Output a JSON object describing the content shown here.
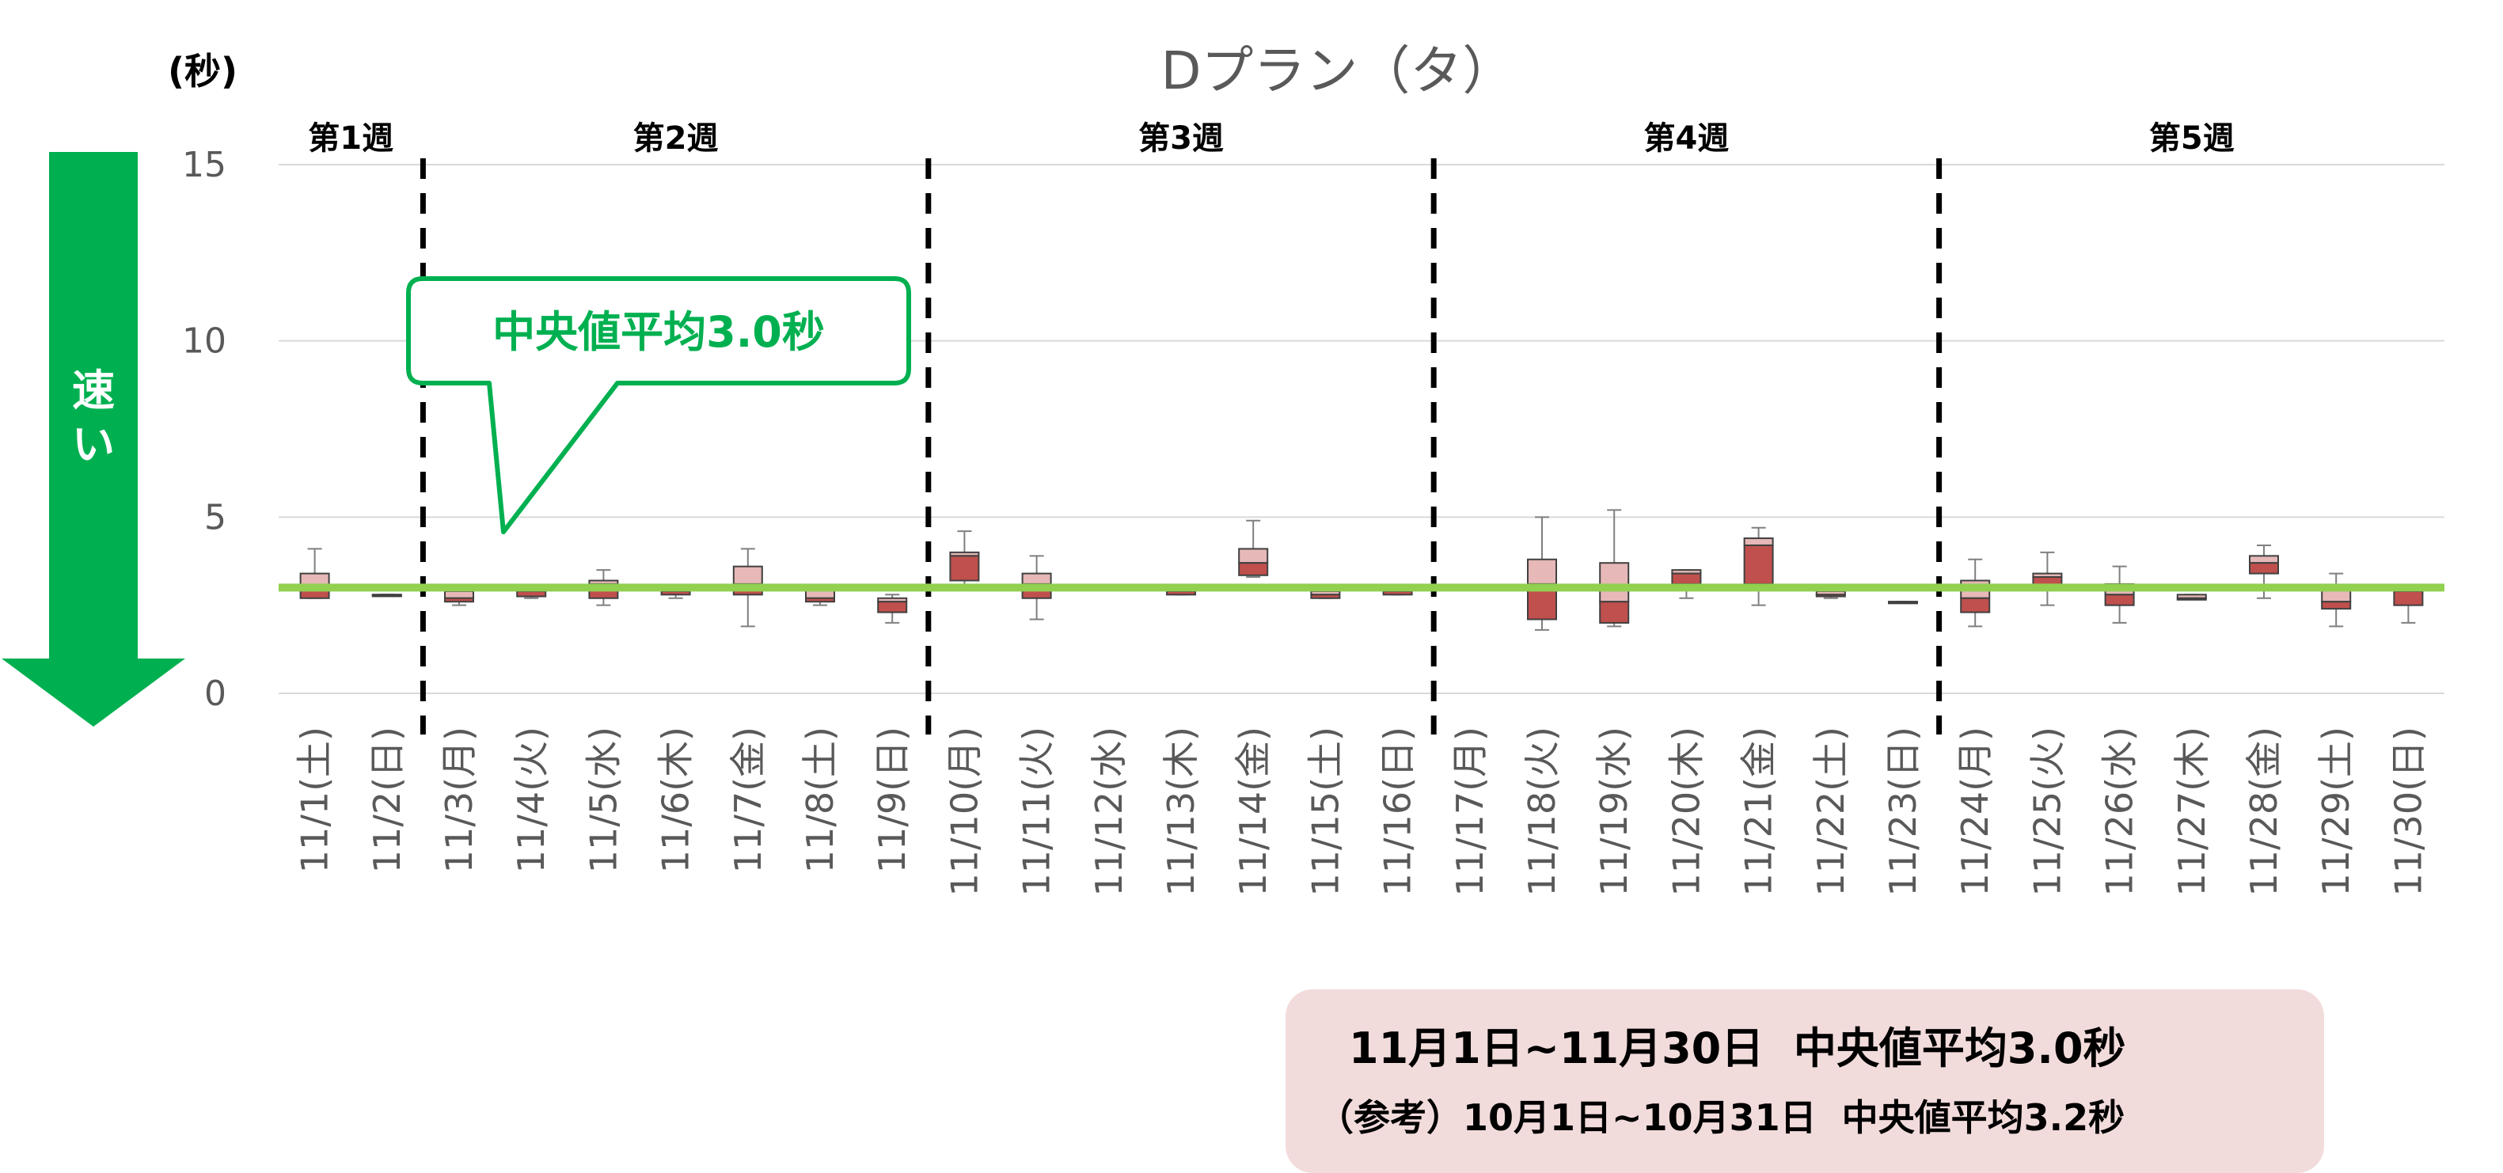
{
  "chart_data": {
    "type": "boxplot",
    "title": "Dプラン（タ）",
    "unit_label": "(秒)",
    "ylim": [
      0,
      15
    ],
    "yticks": [
      0,
      5,
      10,
      15
    ],
    "grid": true,
    "median_average_line": 3.0,
    "speed_indicator": "速い",
    "callout": "中央値平均3.0秒",
    "weeks": [
      {
        "label": "第1週",
        "start": 0,
        "end": 1
      },
      {
        "label": "第2週",
        "start": 2,
        "end": 8
      },
      {
        "label": "第3週",
        "start": 9,
        "end": 15
      },
      {
        "label": "第4週",
        "start": 16,
        "end": 22
      },
      {
        "label": "第5週",
        "start": 23,
        "end": 29
      }
    ],
    "categories": [
      "11/1(土)",
      "11/2(日)",
      "11/3(月)",
      "11/4(火)",
      "11/5(水)",
      "11/6(木)",
      "11/7(金)",
      "11/8(土)",
      "11/9(日)",
      "11/10(月)",
      "11/11(火)",
      "11/12(水)",
      "11/13(木)",
      "11/14(金)",
      "11/15(土)",
      "11/16(日)",
      "11/17(月)",
      "11/18(火)",
      "11/19(水)",
      "11/20(木)",
      "11/21(金)",
      "11/22(土)",
      "11/23(日)",
      "11/24(月)",
      "11/25(火)",
      "11/26(水)",
      "11/27(木)",
      "11/28(金)",
      "11/29(土)",
      "11/30(日)"
    ],
    "boxes": [
      {
        "min": 2.7,
        "q1": 2.7,
        "median": 3.0,
        "q3": 3.4,
        "max": 4.1
      },
      {
        "min": 2.8,
        "q1": 2.8,
        "median": 2.8,
        "q3": 2.8,
        "max": 2.8
      },
      {
        "min": 2.5,
        "q1": 2.6,
        "median": 2.7,
        "q3": 2.9,
        "max": 2.9
      },
      {
        "min": 2.7,
        "q1": 2.75,
        "median": 2.9,
        "q3": 3.0,
        "max": 3.0
      },
      {
        "min": 2.5,
        "q1": 2.7,
        "median": 3.1,
        "q3": 3.2,
        "max": 3.5
      },
      {
        "min": 2.7,
        "q1": 2.8,
        "median": 2.9,
        "q3": 3.0,
        "max": 3.0
      },
      {
        "min": 1.9,
        "q1": 2.8,
        "median": 3.1,
        "q3": 3.6,
        "max": 4.1
      },
      {
        "min": 2.5,
        "q1": 2.6,
        "median": 2.7,
        "q3": 3.0,
        "max": 3.0
      },
      {
        "min": 2.0,
        "q1": 2.3,
        "median": 2.6,
        "q3": 2.7,
        "max": 2.8
      },
      {
        "min": 3.0,
        "q1": 3.2,
        "median": 3.9,
        "q3": 4.0,
        "max": 4.6
      },
      {
        "min": 2.1,
        "q1": 2.7,
        "median": 3.1,
        "q3": 3.4,
        "max": 3.9
      },
      {
        "min": 3.0,
        "q1": 3.0,
        "median": 3.0,
        "q3": 3.0,
        "max": 3.0
      },
      {
        "min": 2.8,
        "q1": 2.8,
        "median": 2.9,
        "q3": 2.95,
        "max": 2.95
      },
      {
        "min": 3.3,
        "q1": 3.35,
        "median": 3.7,
        "q3": 4.1,
        "max": 4.9
      },
      {
        "min": 2.7,
        "q1": 2.7,
        "median": 2.8,
        "q3": 2.9,
        "max": 2.9
      },
      {
        "min": 2.8,
        "q1": 2.8,
        "median": 2.9,
        "q3": 3.0,
        "max": 3.0
      },
      {
        "min": 2.95,
        "q1": 2.95,
        "median": 3.0,
        "q3": 3.0,
        "max": 3.0
      },
      {
        "min": 1.8,
        "q1": 2.1,
        "median": 3.1,
        "q3": 3.8,
        "max": 5.0
      },
      {
        "min": 1.9,
        "q1": 2.0,
        "median": 2.6,
        "q3": 3.7,
        "max": 5.2
      },
      {
        "min": 2.7,
        "q1": 3.1,
        "median": 3.4,
        "q3": 3.5,
        "max": 3.5
      },
      {
        "min": 2.5,
        "q1": 3.1,
        "median": 4.2,
        "q3": 4.4,
        "max": 4.7
      },
      {
        "min": 2.7,
        "q1": 2.75,
        "median": 2.8,
        "q3": 2.9,
        "max": 2.9
      },
      {
        "min": 2.6,
        "q1": 2.6,
        "median": 2.6,
        "q3": 2.6,
        "max": 2.6
      },
      {
        "min": 1.9,
        "q1": 2.3,
        "median": 2.7,
        "q3": 3.2,
        "max": 3.8
      },
      {
        "min": 2.5,
        "q1": 3.0,
        "median": 3.3,
        "q3": 3.4,
        "max": 4.0
      },
      {
        "min": 2.0,
        "q1": 2.5,
        "median": 2.8,
        "q3": 3.1,
        "max": 3.6
      },
      {
        "min": 2.7,
        "q1": 2.7,
        "median": 2.7,
        "q3": 2.8,
        "max": 2.8
      },
      {
        "min": 2.7,
        "q1": 3.4,
        "median": 3.7,
        "q3": 3.9,
        "max": 4.2
      },
      {
        "min": 1.9,
        "q1": 2.4,
        "median": 2.6,
        "q3": 3.0,
        "max": 3.4
      },
      {
        "min": 2.0,
        "q1": 2.5,
        "median": 2.9,
        "q3": 2.9,
        "max": 3.0
      }
    ],
    "colors": {
      "upper_box": "#e6b8b7",
      "lower_box": "#c0504d",
      "median_line": "#92d050",
      "accent": "#00b050",
      "grid": "#d9d9d9",
      "summary_bg": "#f2dcdb"
    }
  },
  "summary": {
    "line1": "11月1日~11月30日  中央値平均3.0秒",
    "line2": "（参考）10月1日~10月31日  中央値平均3.2秒"
  }
}
